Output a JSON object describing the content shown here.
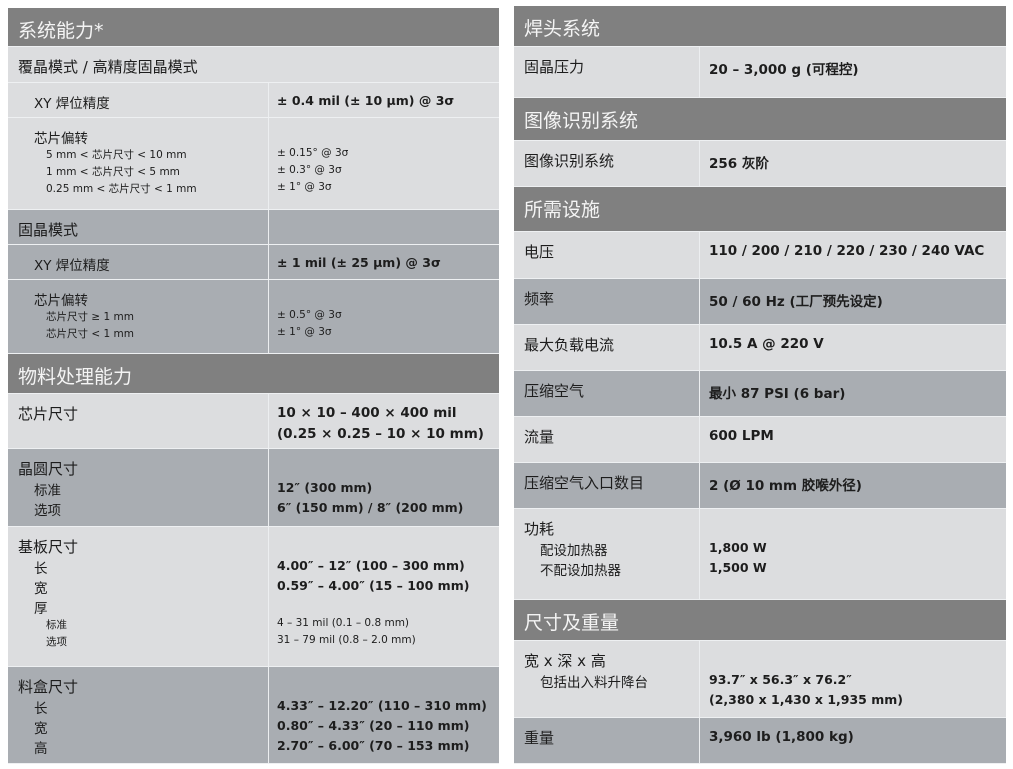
{
  "colors": {
    "header_bg": "#808080",
    "row_light": "#dcdddf",
    "row_dark": "#a9adb2",
    "header_text": "#f4f4f4"
  },
  "left": [
    {
      "type": "header",
      "title": "系统能力*"
    },
    {
      "type": "row",
      "tone": "light",
      "span": true,
      "lines": [
        {
          "level": 0,
          "label": "覆晶模式 / 高精度固晶模式",
          "value": ""
        }
      ]
    },
    {
      "type": "row",
      "tone": "light",
      "lines": [
        {
          "level": 1,
          "label": "XY 焊位精度",
          "value": "± 0.4 mil (± 10 μm) @ 3σ"
        }
      ]
    },
    {
      "type": "row",
      "tone": "light",
      "lines": [
        {
          "level": 1,
          "label": "芯片偏转",
          "value": ""
        },
        {
          "level": 2,
          "label": "5 mm < 芯片尺寸 < 10 mm",
          "value": "± 0.15° @ 3σ"
        },
        {
          "level": 2,
          "label": "1 mm < 芯片尺寸 < 5 mm",
          "value": "± 0.3° @ 3σ"
        },
        {
          "level": 2,
          "label": "0.25 mm < 芯片尺寸 < 1 mm",
          "value": "± 1° @ 3σ"
        }
      ]
    },
    {
      "type": "row",
      "tone": "dark",
      "lines": [
        {
          "level": 0,
          "label": "固晶模式",
          "value": ""
        }
      ]
    },
    {
      "type": "row",
      "tone": "dark",
      "lines": [
        {
          "level": 1,
          "label": "XY 焊位精度",
          "value": "± 1 mil (± 25 μm) @ 3σ"
        }
      ]
    },
    {
      "type": "row",
      "tone": "dark",
      "lines": [
        {
          "level": 1,
          "label": "芯片偏转",
          "value": ""
        },
        {
          "level": 2,
          "label": "芯片尺寸 ≥ 1 mm",
          "value": "± 0.5° @ 3σ"
        },
        {
          "level": 2,
          "label": "芯片尺寸 < 1 mm",
          "value": "± 1° @ 3σ"
        }
      ]
    },
    {
      "type": "header",
      "title": "物料处理能力"
    },
    {
      "type": "row",
      "tone": "light",
      "lines": [
        {
          "level": 0,
          "label": "芯片尺寸",
          "value": "10 × 10 – 400 × 400 mil"
        },
        {
          "level": 0,
          "label": "",
          "value": "(0.25 × 0.25 – 10 × 10 mm)"
        }
      ]
    },
    {
      "type": "row",
      "tone": "dark",
      "lines": [
        {
          "level": 0,
          "label": "晶圆尺寸",
          "value": ""
        },
        {
          "level": 1,
          "label": "标准",
          "value": "12″ (300 mm)"
        },
        {
          "level": 1,
          "label": "选项",
          "value": "6″ (150 mm) / 8″ (200 mm)"
        }
      ]
    },
    {
      "type": "row",
      "tone": "light",
      "lines": [
        {
          "level": 0,
          "label": "基板尺寸",
          "value": ""
        },
        {
          "level": 1,
          "label": "长",
          "value": "4.00″ – 12″ (100 – 300 mm)"
        },
        {
          "level": 1,
          "label": "宽",
          "value": "0.59″ – 4.00″ (15 – 100 mm)"
        },
        {
          "level": 1,
          "label": "厚",
          "value": ""
        },
        {
          "level": 2,
          "label": "标准",
          "value": "4 – 31 mil (0.1 – 0.8 mm)"
        },
        {
          "level": 2,
          "label": "选项",
          "value": "31 – 79 mil (0.8 – 2.0 mm)"
        }
      ]
    },
    {
      "type": "row",
      "tone": "dark",
      "lines": [
        {
          "level": 0,
          "label": "料盒尺寸",
          "value": ""
        },
        {
          "level": 1,
          "label": "长",
          "value": "4.33″ – 12.20″ (110 – 310 mm)"
        },
        {
          "level": 1,
          "label": "宽",
          "value": "0.80″ – 4.33″ (20 – 110 mm)"
        },
        {
          "level": 1,
          "label": "高",
          "value": "2.70″ – 6.00″ (70 – 153 mm)"
        }
      ]
    }
  ],
  "right": [
    {
      "type": "header",
      "title": "焊头系统"
    },
    {
      "type": "row",
      "tone": "light",
      "lines": [
        {
          "level": 0,
          "label": "固晶压力",
          "value": "20 – 3,000 g (可程控)"
        }
      ]
    },
    {
      "type": "header",
      "title": "图像识别系统"
    },
    {
      "type": "row",
      "tone": "light",
      "lines": [
        {
          "level": 0,
          "label": "图像识别系统",
          "value": "256 灰阶"
        }
      ]
    },
    {
      "type": "header",
      "title": "所需设施"
    },
    {
      "type": "row",
      "tone": "light",
      "lines": [
        {
          "level": 0,
          "label": "电压",
          "value": "110 / 200 / 210 / 220 / 230 / 240 VAC"
        }
      ]
    },
    {
      "type": "row",
      "tone": "dark",
      "lines": [
        {
          "level": 0,
          "label": "频率",
          "value": "50 / 60 Hz (工厂预先设定)"
        }
      ]
    },
    {
      "type": "row",
      "tone": "light",
      "lines": [
        {
          "level": 0,
          "label": "最大负载电流",
          "value": "10.5 A @ 220 V"
        }
      ]
    },
    {
      "type": "row",
      "tone": "dark",
      "lines": [
        {
          "level": 0,
          "label": "压缩空气",
          "value": "最小 87 PSI (6 bar)"
        }
      ]
    },
    {
      "type": "row",
      "tone": "light",
      "lines": [
        {
          "level": 0,
          "label": "流量",
          "value": "600 LPM"
        }
      ]
    },
    {
      "type": "row",
      "tone": "dark",
      "lines": [
        {
          "level": 0,
          "label": "压缩空气入口数目",
          "value": "2 (Ø 10 mm 胶喉外径)"
        }
      ]
    },
    {
      "type": "row",
      "tone": "light",
      "lines": [
        {
          "level": 0,
          "label": "功耗",
          "value": ""
        },
        {
          "level": 1,
          "label": "配设加热器",
          "value": "1,800 W"
        },
        {
          "level": 1,
          "label": "不配设加热器",
          "value": "1,500 W"
        }
      ]
    },
    {
      "type": "header",
      "title": "尺寸及重量"
    },
    {
      "type": "row",
      "tone": "light",
      "lines": [
        {
          "level": 0,
          "label": "宽 x 深 x 高",
          "value": ""
        },
        {
          "level": 1,
          "label": "包括出入料升降台",
          "value": "93.7″ x 56.3″ x 76.2″"
        },
        {
          "level": 1,
          "label": "",
          "value": "(2,380  x 1,430 x 1,935 mm)"
        }
      ]
    },
    {
      "type": "row",
      "tone": "dark",
      "lines": [
        {
          "level": 0,
          "label": "重量",
          "value": "3,960 lb (1,800 kg)"
        }
      ]
    }
  ]
}
